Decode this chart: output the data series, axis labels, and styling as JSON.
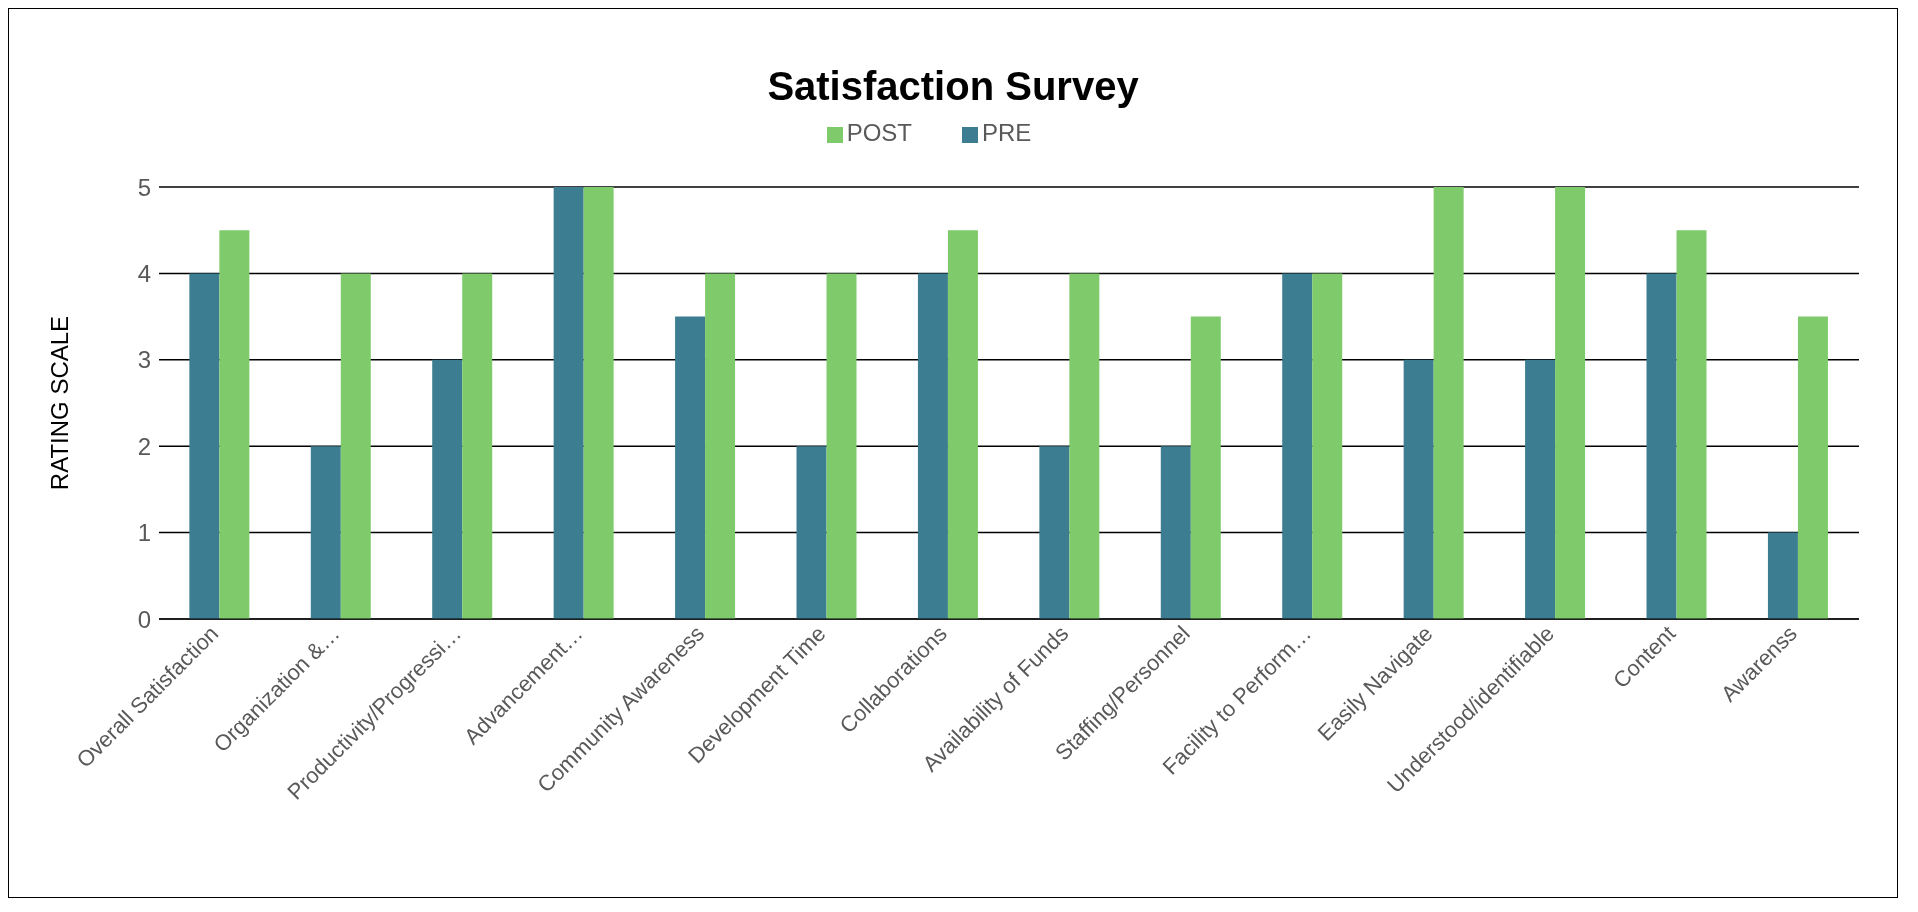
{
  "chart_data": {
    "type": "bar",
    "title": "Satisfaction Survey",
    "ylabel": "RATING SCALE",
    "categories": [
      "Overall Satisfaction",
      "Organization &…",
      "Productivity/Progressi…",
      "Advancement…",
      "Community Awareness",
      "Development Time",
      "Collaborations",
      "Availability of Funds",
      "Staffing/Personnel",
      "Facility to Perform…",
      "Easily Navigate",
      "Understood/identifiable",
      "Content",
      "Awarenss"
    ],
    "series": [
      {
        "name": "PRE",
        "color": "#3d7d91",
        "values": [
          4,
          2,
          3,
          5,
          3.5,
          2,
          4,
          2,
          2,
          4,
          3,
          3,
          4,
          1
        ]
      },
      {
        "name": "POST",
        "color": "#7fcb6c",
        "values": [
          4.5,
          4,
          4,
          5,
          4,
          4,
          4.5,
          4,
          3.5,
          4,
          5,
          5,
          4.5,
          3.5
        ]
      }
    ],
    "ylim": [
      0,
      5
    ],
    "yticks": [
      0,
      1,
      2,
      3,
      4,
      5
    ],
    "grid": "y",
    "legend": "top"
  }
}
